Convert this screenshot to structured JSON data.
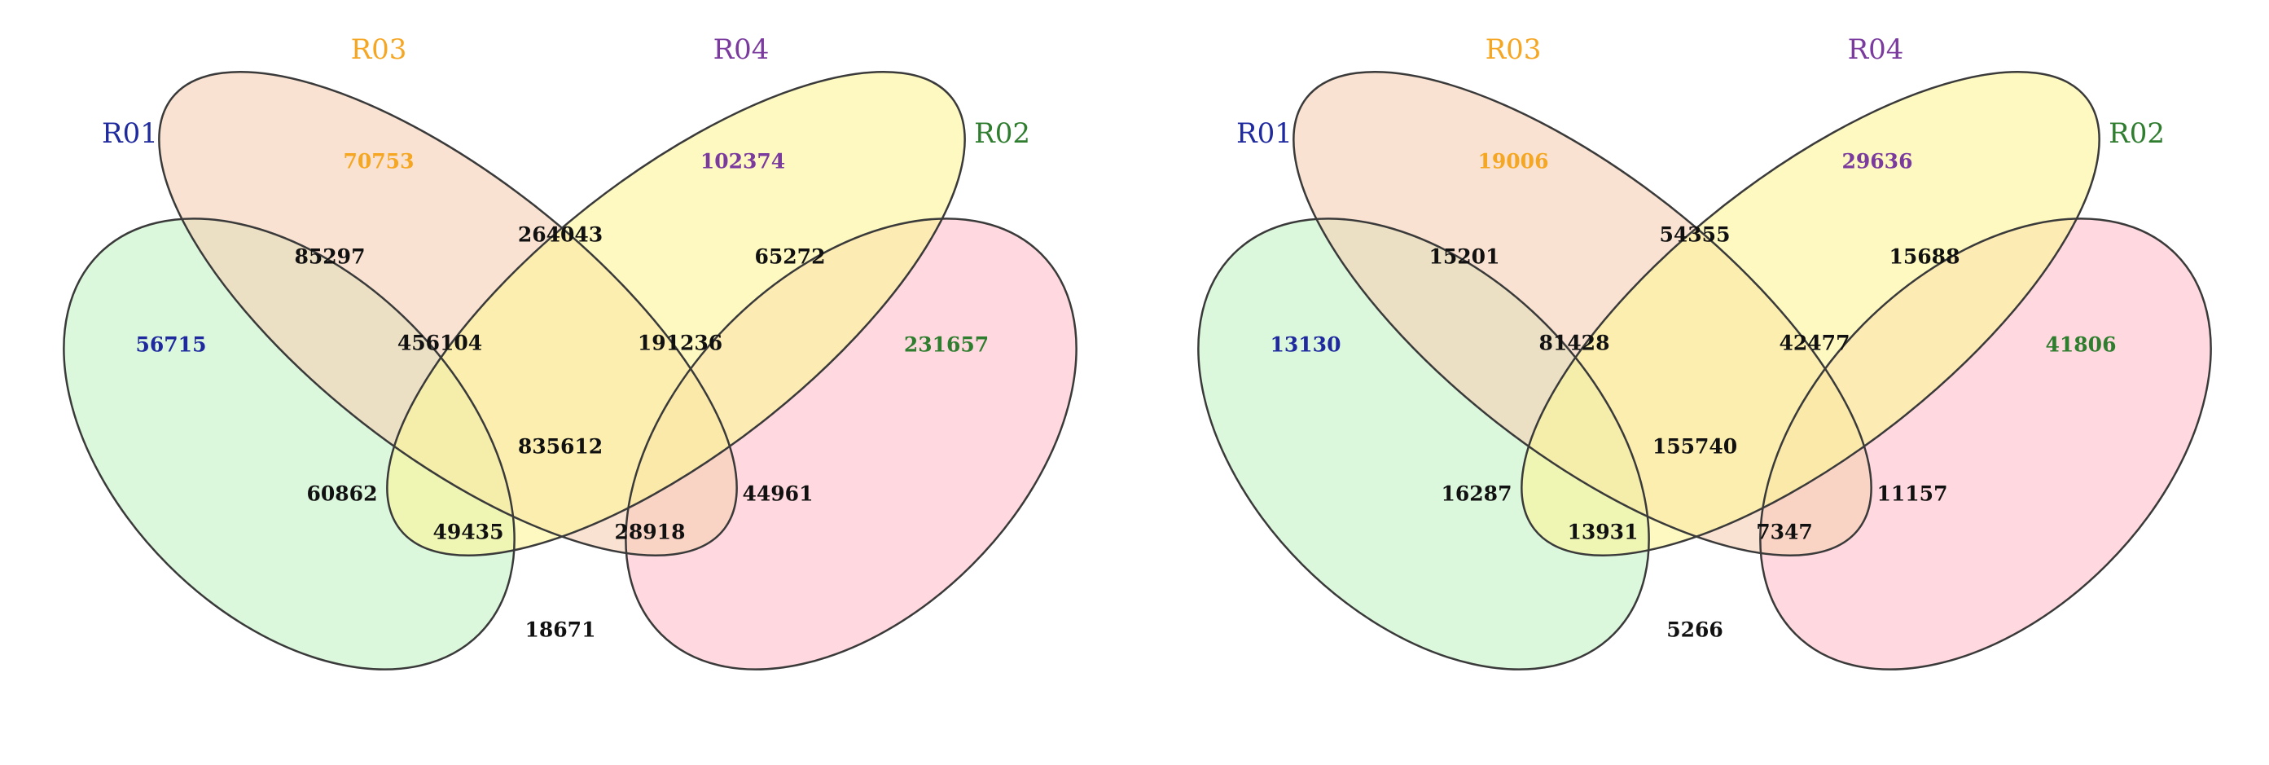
{
  "sets": [
    {
      "id": "R01",
      "label": "R01",
      "color": "#1f2a9e"
    },
    {
      "id": "R02",
      "label": "R02",
      "color": "#2f7d2f"
    },
    {
      "id": "R03",
      "label": "R03",
      "color": "#f5a623"
    },
    {
      "id": "R04",
      "label": "R04",
      "color": "#7a3a9e"
    }
  ],
  "fills": {
    "R01": "#c5f3c8",
    "R02": "#ffc2cc",
    "R03": "#f6d0b4",
    "R04": "#fcf59a"
  },
  "outline_color": "#3a3a3a",
  "count_color": "#111111",
  "diagrams": [
    {
      "id": "left",
      "regions": {
        "R01": "56715",
        "R02": "231657",
        "R03": "70753",
        "R04": "102374",
        "R01_R03": "85297",
        "R03_R04": "264043",
        "R02_R04": "65272",
        "R01_R03_R04": "456104",
        "R02_R03_R04": "191236",
        "R01_R02_R03_R04": "835612",
        "R01_R04": "60862",
        "R02_R03": "44961",
        "R01_R02_R04": "49435",
        "R01_R02_R03": "28918",
        "R01_R02": "18671"
      }
    },
    {
      "id": "right",
      "regions": {
        "R01": "13130",
        "R02": "41806",
        "R03": "19006",
        "R04": "29636",
        "R01_R03": "15201",
        "R03_R04": "54355",
        "R02_R04": "15688",
        "R01_R03_R04": "81428",
        "R02_R03_R04": "42477",
        "R01_R02_R03_R04": "155740",
        "R01_R04": "16287",
        "R02_R03": "11157",
        "R01_R02_R04": "13931",
        "R01_R02_R03": "7347",
        "R01_R02": "5266"
      }
    }
  ]
}
